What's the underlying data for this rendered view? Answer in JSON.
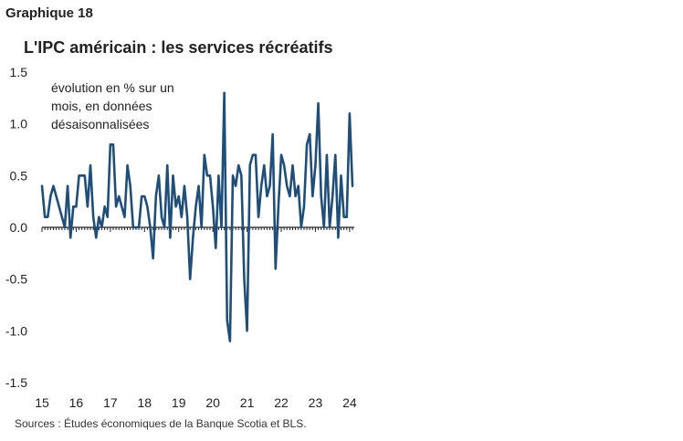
{
  "header": {
    "label": "Graphique 18",
    "title": "L'IPC américain : les services récréatifs"
  },
  "note": {
    "lines": [
      "évolution en % sur un",
      "mois, en données",
      "désaisonnalisées"
    ]
  },
  "source": "Sources : Études économiques de la Banque Scotia et BLS.",
  "chart_data": {
    "type": "line",
    "title": "L'IPC américain : les services récréatifs",
    "xlabel": "",
    "ylabel": "",
    "ylim": [
      -1.5,
      1.5
    ],
    "y_ticks": [
      -1.5,
      -1.0,
      -0.5,
      0.0,
      0.5,
      1.0,
      1.5
    ],
    "y_tick_labels": [
      "-1.5",
      "-1.0",
      "-0.5",
      "0.0",
      "0.5",
      "1.0",
      "1.5"
    ],
    "x_tick_labels": [
      "15",
      "16",
      "17",
      "18",
      "19",
      "20",
      "21",
      "22",
      "23",
      "24"
    ],
    "x_range": [
      "2015-01",
      "2024-02"
    ],
    "grid": false,
    "line_color": "#1f4e79",
    "series": [
      {
        "values": [
          0.4,
          0.1,
          0.1,
          0.3,
          0.4,
          0.3,
          0.2,
          0.1,
          0.0,
          0.4,
          -0.1,
          0.2,
          0.2,
          0.5,
          0.5,
          0.5,
          0.2,
          0.6,
          0.1,
          -0.1,
          0.1,
          0.0,
          0.2,
          0.1,
          0.8,
          0.8,
          0.2,
          0.3,
          0.2,
          0.1,
          0.6,
          0.4,
          0.0,
          0.0,
          0.0,
          0.3,
          0.3,
          0.2,
          0.0,
          -0.3,
          0.3,
          0.5,
          0.1,
          0.0,
          0.6,
          -0.1,
          0.5,
          0.2,
          0.3,
          0.1,
          0.4,
          0.1,
          -0.5,
          -0.1,
          0.2,
          0.4,
          0.0,
          0.7,
          0.5,
          0.5,
          0.2,
          -0.2,
          0.5,
          0.0,
          1.3,
          -0.9,
          -1.1,
          0.5,
          0.4,
          0.6,
          0.5,
          -0.5,
          -1.0,
          0.6,
          0.7,
          0.7,
          0.1,
          0.4,
          0.6,
          0.3,
          0.4,
          0.9,
          -0.4,
          0.2,
          0.7,
          0.6,
          0.4,
          0.3,
          0.6,
          0.3,
          0.4,
          0.0,
          0.2,
          0.8,
          0.9,
          0.3,
          0.6,
          1.2,
          0.3,
          0.0,
          0.7,
          0.0,
          0.3,
          0.7,
          -0.1,
          0.5,
          0.1,
          0.1,
          1.1,
          0.4
        ]
      }
    ]
  }
}
